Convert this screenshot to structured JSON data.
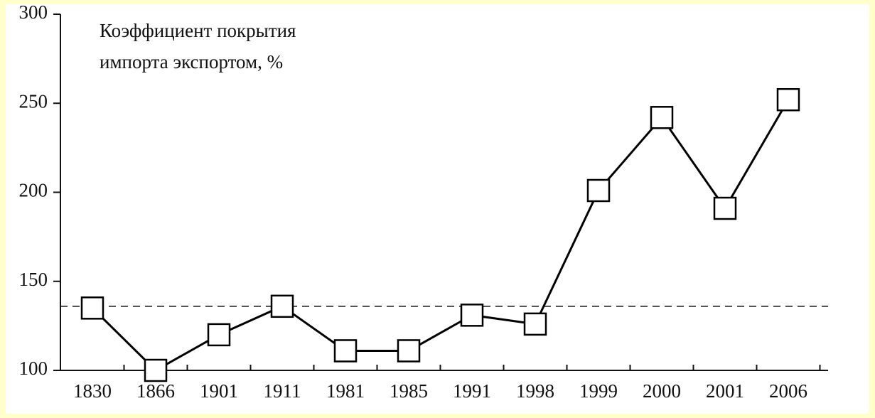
{
  "chart_data": {
    "type": "line",
    "title": [
      "Коэффициент покрытия",
      "импорта экспортом, %"
    ],
    "categories": [
      "1830",
      "1866",
      "1901",
      "1911",
      "1981",
      "1985",
      "1991",
      "1998",
      "1999",
      "2000",
      "2001",
      "2006"
    ],
    "values": [
      135,
      100,
      120,
      136,
      111,
      111,
      131,
      126,
      201,
      242,
      191,
      252
    ],
    "color": "#000000",
    "reference_line": 136,
    "ylim": [
      100,
      300
    ],
    "yticks": [
      100,
      150,
      200,
      250,
      300
    ]
  }
}
